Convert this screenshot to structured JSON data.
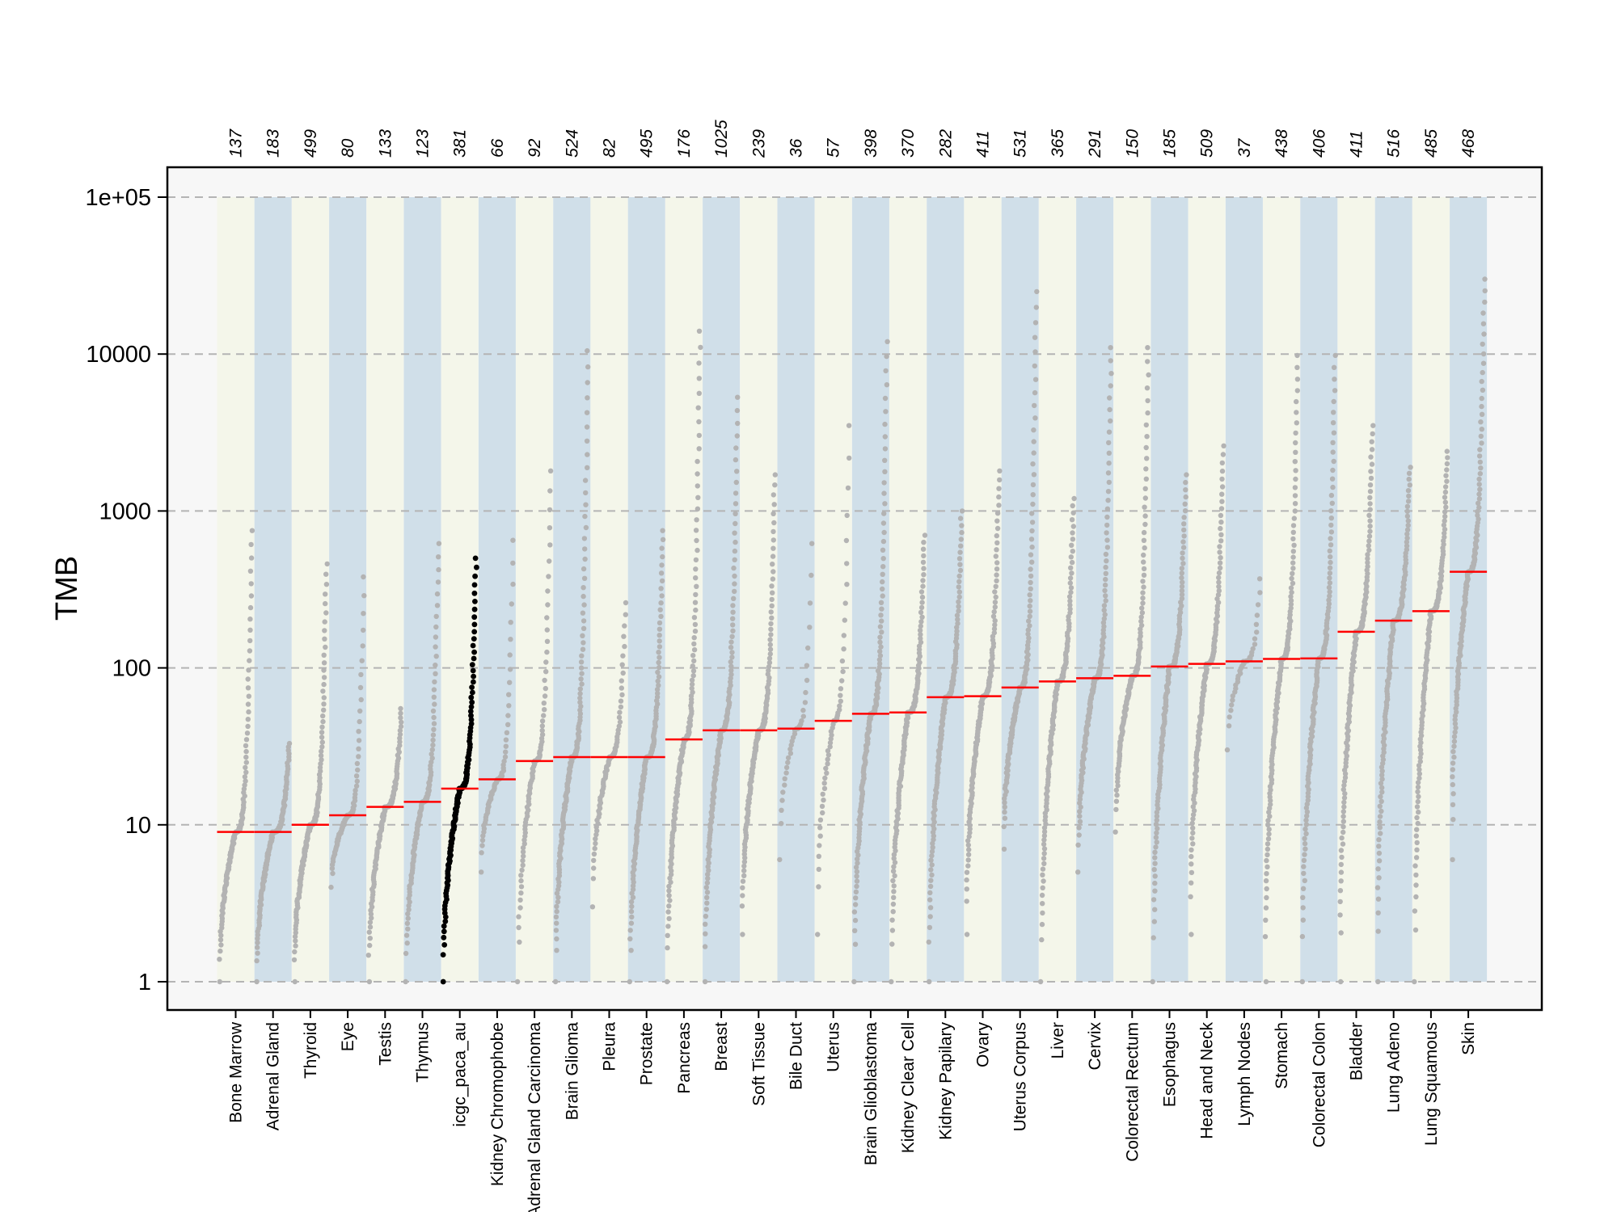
{
  "chart_data": {
    "type": "scatter",
    "title": "",
    "xlabel": "",
    "ylabel": "TMB",
    "yscale": "log",
    "ylim": [
      1,
      100000
    ],
    "yticks": [
      1,
      10,
      100,
      1000,
      10000,
      100000
    ],
    "ytick_labels": [
      "1",
      "10",
      "100",
      "1000",
      "10000",
      "1e+05"
    ],
    "grid": "horizontal dashed",
    "legend": "none",
    "highlight": "icgc_paca_au",
    "colors": {
      "panel": "#f7f7f7",
      "band_a": "#f4f6ea",
      "band_b": "#d0dfe9",
      "point": "#b3b3b3",
      "highlight_point": "#000000",
      "median": "#ff0000",
      "grid": "#b4b4b4"
    },
    "categories": [
      {
        "name": "Bone Marrow",
        "n": "137",
        "min": 1,
        "max": 750,
        "median": 9
      },
      {
        "name": "Adrenal Gland",
        "n": "183",
        "min": 1,
        "max": 33,
        "median": 9
      },
      {
        "name": "Thyroid",
        "n": "499",
        "min": 1,
        "max": 460,
        "median": 10
      },
      {
        "name": "Eye",
        "n": "80",
        "min": 4,
        "max": 380,
        "median": 11.5
      },
      {
        "name": "Testis",
        "n": "133",
        "min": 1,
        "max": 55,
        "median": 13
      },
      {
        "name": "Thymus",
        "n": "123",
        "min": 1,
        "max": 620,
        "median": 14
      },
      {
        "name": "icgc_paca_au",
        "n": "381",
        "min": 1,
        "max": 500,
        "median": 17
      },
      {
        "name": "Kidney Chromophobe",
        "n": "66",
        "min": 5,
        "max": 650,
        "median": 19.5
      },
      {
        "name": "Adrenal Gland Carcinoma",
        "n": "92",
        "min": 1,
        "max": 1800,
        "median": 25.5
      },
      {
        "name": "Brain Glioma",
        "n": "524",
        "min": 1,
        "max": 10500,
        "median": 27
      },
      {
        "name": "Pleura",
        "n": "82",
        "min": 3,
        "max": 260,
        "median": 27
      },
      {
        "name": "Prostate",
        "n": "495",
        "min": 1,
        "max": 750,
        "median": 27
      },
      {
        "name": "Pancreas",
        "n": "176",
        "min": 1,
        "max": 14000,
        "median": 35
      },
      {
        "name": "Breast",
        "n": "1025",
        "min": 1,
        "max": 5300,
        "median": 40
      },
      {
        "name": "Soft Tissue",
        "n": "239",
        "min": 2,
        "max": 1700,
        "median": 40
      },
      {
        "name": "Bile Duct",
        "n": "36",
        "min": 6,
        "max": 620,
        "median": 41
      },
      {
        "name": "Uterus",
        "n": "57",
        "min": 2,
        "max": 3500,
        "median": 46
      },
      {
        "name": "Brain Glioblastoma",
        "n": "398",
        "min": 1,
        "max": 12000,
        "median": 51
      },
      {
        "name": "Kidney Clear Cell",
        "n": "370",
        "min": 1,
        "max": 700,
        "median": 52
      },
      {
        "name": "Kidney Papilary",
        "n": "282",
        "min": 1,
        "max": 1000,
        "median": 65
      },
      {
        "name": "Ovary",
        "n": "411",
        "min": 2,
        "max": 1800,
        "median": 66
      },
      {
        "name": "Uterus Corpus",
        "n": "531",
        "min": 7,
        "max": 25000,
        "median": 75
      },
      {
        "name": "Liver",
        "n": "365",
        "min": 1,
        "max": 1200,
        "median": 82
      },
      {
        "name": "Cervix",
        "n": "291",
        "min": 5,
        "max": 11000,
        "median": 86
      },
      {
        "name": "Colorectal Rectum",
        "n": "150",
        "min": 9,
        "max": 11000,
        "median": 89
      },
      {
        "name": "Esophagus",
        "n": "185",
        "min": 1,
        "max": 1700,
        "median": 102
      },
      {
        "name": "Head and Neck",
        "n": "509",
        "min": 2,
        "max": 2600,
        "median": 106
      },
      {
        "name": "Lymph Nodes",
        "n": "37",
        "min": 30,
        "max": 370,
        "median": 110
      },
      {
        "name": "Stomach",
        "n": "438",
        "min": 1,
        "max": 9800,
        "median": 114
      },
      {
        "name": "Colorectal Colon",
        "n": "406",
        "min": 1,
        "max": 9800,
        "median": 115
      },
      {
        "name": "Bladder",
        "n": "411",
        "min": 1,
        "max": 3500,
        "median": 170
      },
      {
        "name": "Lung Adeno",
        "n": "516",
        "min": 1,
        "max": 1900,
        "median": 200
      },
      {
        "name": "Lung Squamous",
        "n": "485",
        "min": 1,
        "max": 2400,
        "median": 230
      },
      {
        "name": "Skin",
        "n": "468",
        "min": 6,
        "max": 30000,
        "median": 410
      }
    ]
  }
}
